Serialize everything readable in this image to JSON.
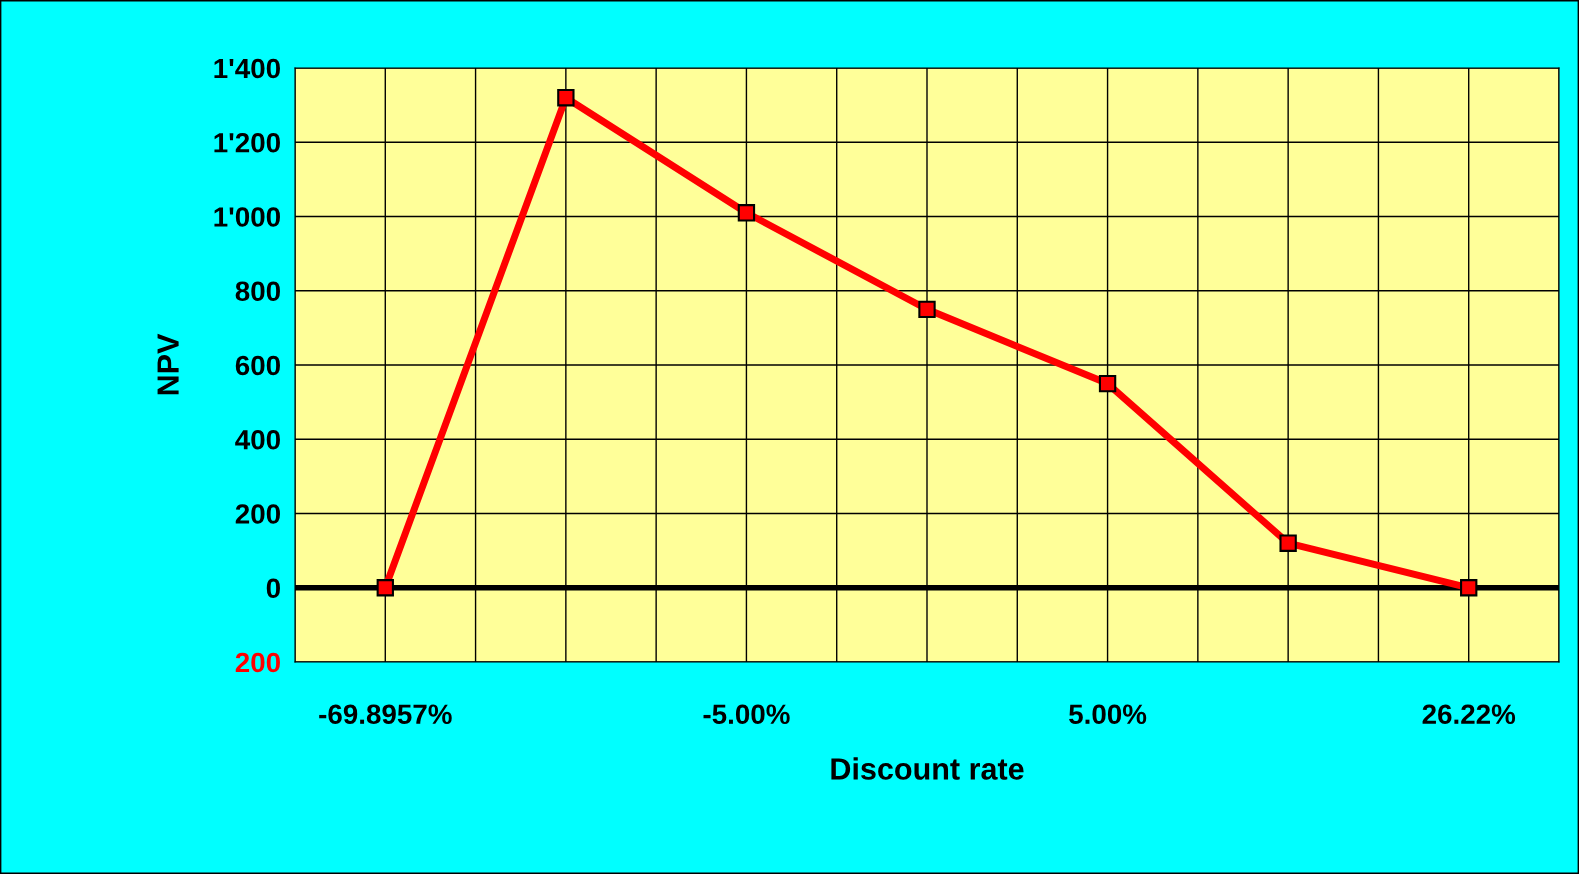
{
  "chart_data": {
    "type": "line",
    "xlabel": "Discount rate",
    "ylabel": "NPV",
    "categories": [
      "-69.8957%",
      null,
      "-5.00%",
      null,
      "5.00%",
      null,
      "26.22%"
    ],
    "series": [
      {
        "color": "#ff0000",
        "values": [
          0,
          1320,
          1010,
          750,
          550,
          120,
          0
        ]
      }
    ],
    "ylim": [
      -200,
      1400
    ],
    "yticks": [
      {
        "value": -200,
        "label": "200"
      },
      {
        "value": 0,
        "label": "0"
      },
      {
        "value": 200,
        "label": "200"
      },
      {
        "value": 400,
        "label": "400"
      },
      {
        "value": 600,
        "label": "600"
      },
      {
        "value": 800,
        "label": "800"
      },
      {
        "value": 1000,
        "label": "1'000"
      },
      {
        "value": 1200,
        "label": "1'200"
      },
      {
        "value": 1400,
        "label": "1'400"
      }
    ],
    "grid": true,
    "marker": "square",
    "line_style": "solid",
    "legend": false
  }
}
